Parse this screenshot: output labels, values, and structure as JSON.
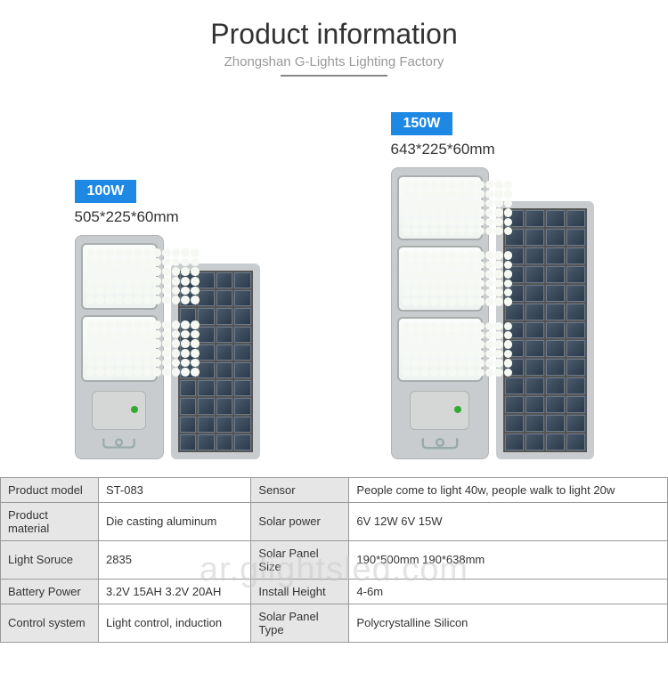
{
  "header": {
    "title": "Product information",
    "subtitle": "Zhongshan G-Lights Lighting Factory"
  },
  "products": [
    {
      "badge": "100W",
      "dimensions": "505*225*60mm",
      "led_rows": 2,
      "device_w": 100,
      "device_h": 220,
      "solar_w": 100,
      "solar_h": 220,
      "solar_rows": 10
    },
    {
      "badge": "150W",
      "dimensions": "643*225*60mm",
      "led_rows": 3,
      "device_w": 110,
      "device_h": 290,
      "solar_w": 110,
      "solar_h": 290,
      "solar_rows": 13
    }
  ],
  "specs": [
    {
      "l1": "Product model",
      "v1": "ST-083",
      "l2": "Sensor",
      "v2": "People come to light 40w, people walk to light 20w"
    },
    {
      "l1": "Product material",
      "v1": "Die casting aluminum",
      "l2": "Solar power",
      "v2": "6V 12W    6V 15W"
    },
    {
      "l1": "Light Soruce",
      "v1": "2835",
      "l2": "Solar Panel Size",
      "v2": "190*500mm    190*638mm"
    },
    {
      "l1": "Battery Power",
      "v1": "3.2V 15AH  3.2V 20AH",
      "l2": "Install Height",
      "v2": "4-6m"
    },
    {
      "l1": "Control system",
      "v1": " Light control, induction",
      "l2": "Solar Panel Type",
      "v2": " Polycrystalline Silicon"
    }
  ],
  "watermark": "ar.glightsled.com",
  "colors": {
    "badge_bg": "#1e88e5"
  }
}
